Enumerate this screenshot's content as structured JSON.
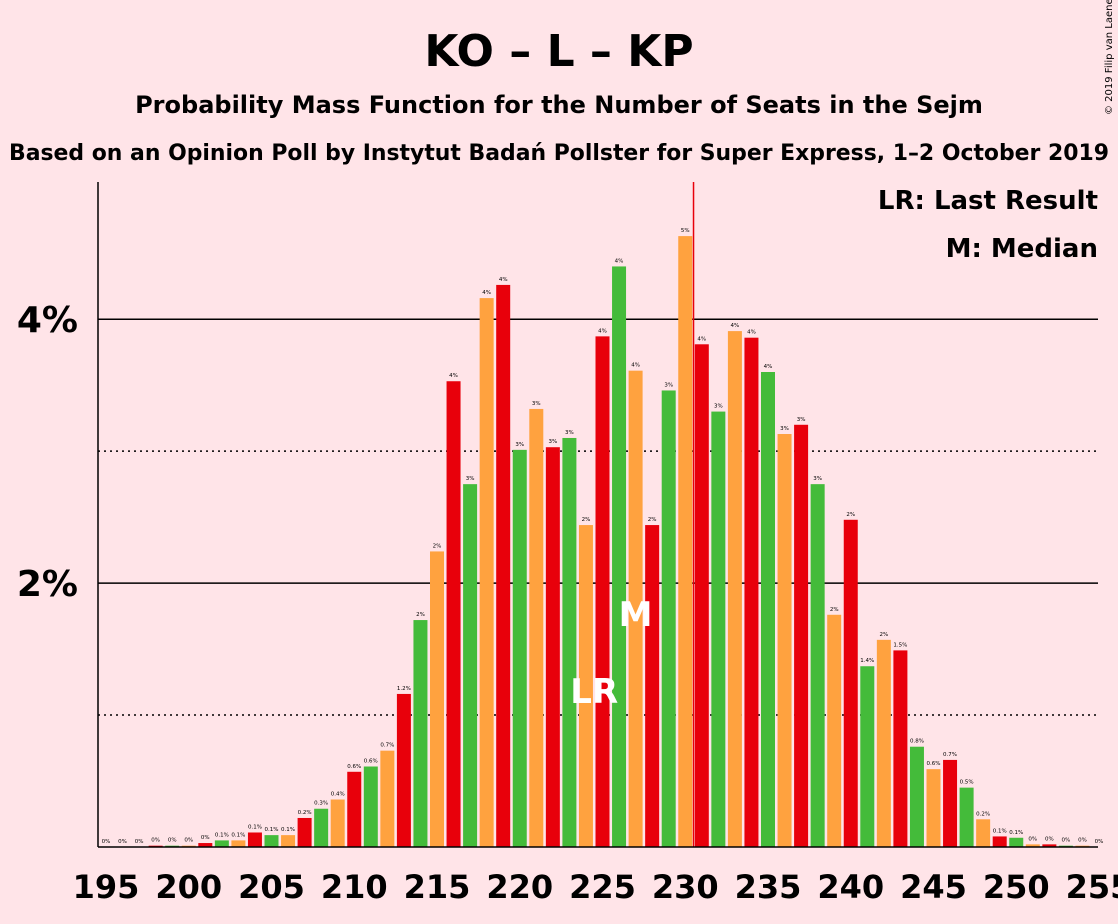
{
  "copyright": "© 2019 Filip van Laenen",
  "chart_data": {
    "type": "bar",
    "title": "KO – L – KP",
    "subtitle1": "Probability Mass Function for the Number of Seats in the Sejm",
    "subtitle2": "Based on an Opinion Poll by Instytut Badań Pollster for Super Express, 1–2 October 2019",
    "xlabel": "",
    "ylabel": "",
    "x_ticks": [
      "195",
      "200",
      "205",
      "210",
      "215",
      "220",
      "225",
      "230",
      "235",
      "240",
      "245",
      "250",
      "255"
    ],
    "y_ticks": [
      {
        "value": 2,
        "label": "2%"
      },
      {
        "value": 4,
        "label": "4%"
      }
    ],
    "ylim": [
      0,
      5.04
    ],
    "xlim": [
      195,
      255
    ],
    "dotted_gridlines": [
      1,
      3
    ],
    "solid_gridlines": [
      2,
      4
    ],
    "colors": [
      "#e8000b",
      "#44bb3a",
      "#ffa23f"
    ],
    "last_result": {
      "seats": 224,
      "label": "LR"
    },
    "median": {
      "seats": 227,
      "label": "M"
    },
    "majority_line_seats": 230.5,
    "majority_line_color": "#e8000b",
    "legend": [
      {
        "key": "LR",
        "text": "LR: Last Result"
      },
      {
        "key": "M",
        "text": "M: Median"
      }
    ],
    "legend_position": "top-right",
    "bars": [
      {
        "seats": 195,
        "value": 0.0,
        "label": "0%"
      },
      {
        "seats": 196,
        "value": 0.0,
        "label": "0%"
      },
      {
        "seats": 197,
        "value": 0.0,
        "label": "0%"
      },
      {
        "seats": 198,
        "value": 0.01,
        "label": "0%"
      },
      {
        "seats": 199,
        "value": 0.01,
        "label": "0%"
      },
      {
        "seats": 200,
        "value": 0.01,
        "label": "0%"
      },
      {
        "seats": 201,
        "value": 0.03,
        "label": "0%"
      },
      {
        "seats": 202,
        "value": 0.05,
        "label": "0.1%"
      },
      {
        "seats": 203,
        "value": 0.05,
        "label": "0.1%"
      },
      {
        "seats": 204,
        "value": 0.11,
        "label": "0.1%"
      },
      {
        "seats": 205,
        "value": 0.09,
        "label": "0.1%"
      },
      {
        "seats": 206,
        "value": 0.09,
        "label": "0.1%"
      },
      {
        "seats": 207,
        "value": 0.22,
        "label": "0.2%"
      },
      {
        "seats": 208,
        "value": 0.29,
        "label": "0.3%"
      },
      {
        "seats": 209,
        "value": 0.36,
        "label": "0.4%"
      },
      {
        "seats": 210,
        "value": 0.57,
        "label": "0.6%"
      },
      {
        "seats": 211,
        "value": 0.61,
        "label": "0.6%"
      },
      {
        "seats": 212,
        "value": 0.73,
        "label": "0.7%"
      },
      {
        "seats": 213,
        "value": 1.16,
        "label": "1.2%"
      },
      {
        "seats": 214,
        "value": 1.72,
        "label": "2%"
      },
      {
        "seats": 215,
        "value": 2.24,
        "label": "2%"
      },
      {
        "seats": 216,
        "value": 3.53,
        "label": "4%"
      },
      {
        "seats": 217,
        "value": 2.75,
        "label": "3%"
      },
      {
        "seats": 218,
        "value": 4.16,
        "label": "4%"
      },
      {
        "seats": 219,
        "value": 4.26,
        "label": "4%"
      },
      {
        "seats": 220,
        "value": 3.01,
        "label": "3%"
      },
      {
        "seats": 221,
        "value": 3.32,
        "label": "3%"
      },
      {
        "seats": 222,
        "value": 3.03,
        "label": "3%"
      },
      {
        "seats": 223,
        "value": 3.1,
        "label": "3%"
      },
      {
        "seats": 224,
        "value": 2.44,
        "label": "2%"
      },
      {
        "seats": 225,
        "value": 3.87,
        "label": "4%"
      },
      {
        "seats": 226,
        "value": 4.4,
        "label": "4%"
      },
      {
        "seats": 227,
        "value": 3.61,
        "label": "4%"
      },
      {
        "seats": 228,
        "value": 2.44,
        "label": "2%"
      },
      {
        "seats": 229,
        "value": 3.46,
        "label": "3%"
      },
      {
        "seats": 230,
        "value": 4.63,
        "label": "5%"
      },
      {
        "seats": 231,
        "value": 3.81,
        "label": "4%"
      },
      {
        "seats": 232,
        "value": 3.3,
        "label": "3%"
      },
      {
        "seats": 233,
        "value": 3.91,
        "label": "4%"
      },
      {
        "seats": 234,
        "value": 3.86,
        "label": "4%"
      },
      {
        "seats": 235,
        "value": 3.6,
        "label": "4%"
      },
      {
        "seats": 236,
        "value": 3.13,
        "label": "3%"
      },
      {
        "seats": 237,
        "value": 3.2,
        "label": "3%"
      },
      {
        "seats": 238,
        "value": 2.75,
        "label": "3%"
      },
      {
        "seats": 239,
        "value": 1.76,
        "label": "2%"
      },
      {
        "seats": 240,
        "value": 2.48,
        "label": "2%"
      },
      {
        "seats": 241,
        "value": 1.37,
        "label": "1.4%"
      },
      {
        "seats": 242,
        "value": 1.57,
        "label": "2%"
      },
      {
        "seats": 243,
        "value": 1.49,
        "label": "1.5%"
      },
      {
        "seats": 244,
        "value": 0.76,
        "label": "0.8%"
      },
      {
        "seats": 245,
        "value": 0.59,
        "label": "0.6%"
      },
      {
        "seats": 246,
        "value": 0.66,
        "label": "0.7%"
      },
      {
        "seats": 247,
        "value": 0.45,
        "label": "0.5%"
      },
      {
        "seats": 248,
        "value": 0.21,
        "label": "0.2%"
      },
      {
        "seats": 249,
        "value": 0.08,
        "label": "0.1%"
      },
      {
        "seats": 250,
        "value": 0.07,
        "label": "0.1%"
      },
      {
        "seats": 251,
        "value": 0.02,
        "label": "0%"
      },
      {
        "seats": 252,
        "value": 0.02,
        "label": "0%"
      },
      {
        "seats": 253,
        "value": 0.01,
        "label": "0%"
      },
      {
        "seats": 254,
        "value": 0.01,
        "label": "0%"
      },
      {
        "seats": 255,
        "value": 0.0,
        "label": "0%"
      }
    ]
  }
}
